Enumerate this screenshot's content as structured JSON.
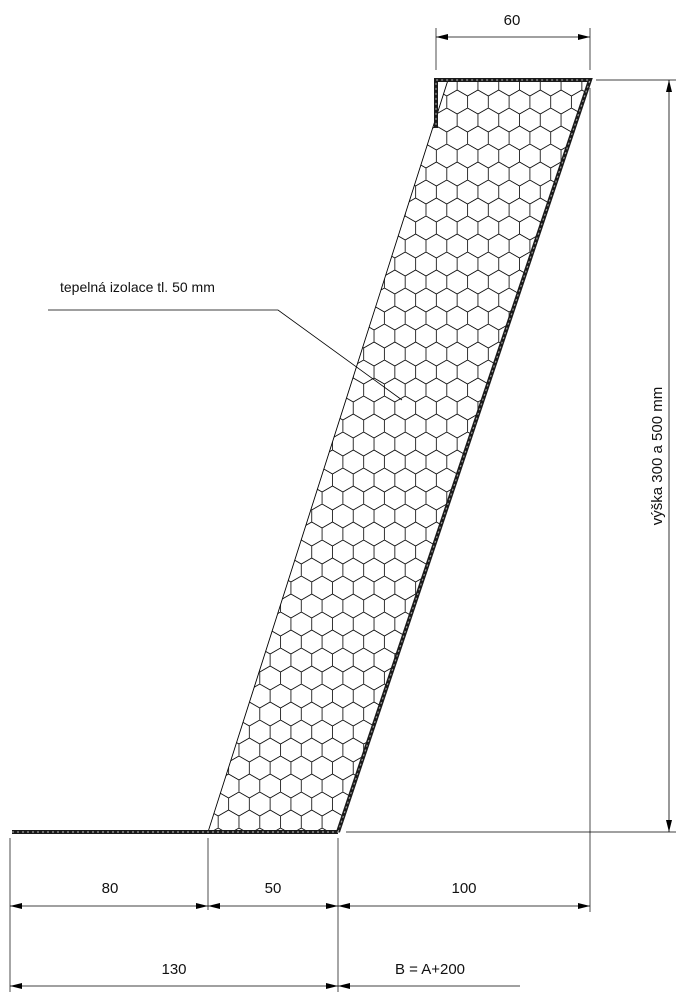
{
  "drawing": {
    "insulation_label": "tepelná izolace tl. 50 mm",
    "height_label": "výška 300 a 500 mm",
    "dimensions": {
      "top_width": "60",
      "bottom_row1": [
        "80",
        "50",
        "100"
      ],
      "bottom_row2": [
        "130",
        "B = A+200"
      ]
    }
  }
}
